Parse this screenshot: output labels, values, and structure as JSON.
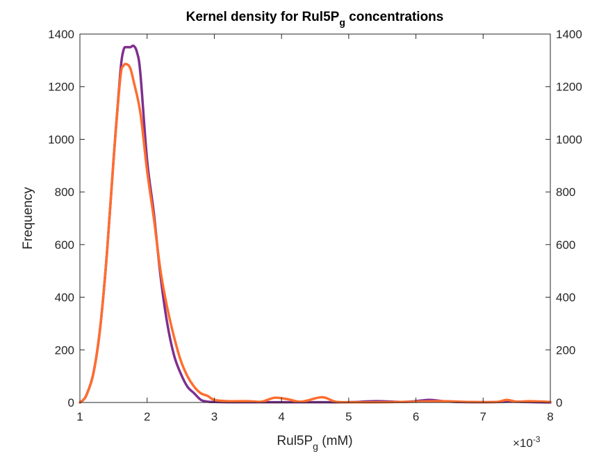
{
  "chart_data": {
    "type": "line",
    "title": {
      "main": "Kernel density for Rul5P",
      "sub": "g",
      "rest": " concentrations"
    },
    "xlabel": {
      "main": "Rul5P",
      "sub": "g",
      "rest": " (mM)"
    },
    "ylabel": "Frequency",
    "x_exponent_label": {
      "prefix": "×10",
      "power": "-3"
    },
    "xlim": [
      1,
      8
    ],
    "ylim": [
      0,
      1400
    ],
    "x_ticks": [
      1,
      2,
      3,
      4,
      5,
      6,
      7,
      8
    ],
    "y_ticks": [
      0,
      200,
      400,
      600,
      800,
      1000,
      1200,
      1400
    ],
    "x_tick_labels": [
      "1",
      "2",
      "3",
      "4",
      "5",
      "6",
      "7",
      "8"
    ],
    "y_tick_labels": [
      "0",
      "200",
      "400",
      "600",
      "800",
      "1000",
      "1200",
      "1400"
    ],
    "y_tick_labels_right": [
      "0",
      "200",
      "400",
      "600",
      "800",
      "1000",
      "1200",
      "1400"
    ],
    "grid": false,
    "series": [
      {
        "color": "#7E2F8E",
        "x": [
          1.0,
          1.05,
          1.1,
          1.2,
          1.3,
          1.4,
          1.5,
          1.6,
          1.65,
          1.7,
          1.75,
          1.8,
          1.85,
          1.9,
          2.0,
          2.1,
          2.2,
          2.3,
          2.4,
          2.5,
          2.6,
          2.7,
          2.8,
          2.9,
          3.0,
          3.2,
          3.5,
          4.0,
          4.5,
          5.0,
          5.4,
          5.8,
          6.0,
          6.2,
          6.4,
          6.6,
          7.0,
          7.4,
          7.6,
          8.0
        ],
        "y": [
          0,
          10,
          30,
          110,
          280,
          560,
          920,
          1250,
          1340,
          1350,
          1350,
          1355,
          1330,
          1250,
          920,
          720,
          480,
          300,
          180,
          110,
          60,
          35,
          10,
          3,
          2,
          1,
          1,
          1,
          1,
          1,
          5,
          2,
          5,
          10,
          5,
          2,
          1,
          3,
          2,
          0
        ]
      },
      {
        "color": "#FF6D2E",
        "x": [
          1.0,
          1.05,
          1.1,
          1.2,
          1.3,
          1.4,
          1.5,
          1.6,
          1.65,
          1.7,
          1.75,
          1.8,
          1.9,
          2.0,
          2.1,
          2.2,
          2.3,
          2.4,
          2.5,
          2.6,
          2.7,
          2.8,
          2.9,
          3.0,
          3.2,
          3.5,
          3.7,
          3.9,
          4.1,
          4.3,
          4.6,
          4.8,
          5.0,
          5.5,
          6.0,
          6.4,
          6.8,
          7.2,
          7.35,
          7.5,
          7.7,
          8.0
        ],
        "y": [
          0,
          10,
          30,
          110,
          280,
          560,
          920,
          1230,
          1280,
          1285,
          1270,
          1220,
          1100,
          880,
          700,
          500,
          360,
          250,
          160,
          100,
          60,
          35,
          25,
          10,
          5,
          5,
          3,
          18,
          12,
          3,
          20,
          3,
          1,
          1,
          3,
          5,
          2,
          2,
          10,
          3,
          5,
          2
        ]
      }
    ]
  }
}
